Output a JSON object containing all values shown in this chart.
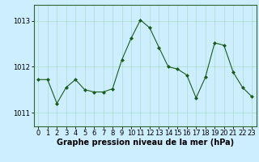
{
  "x": [
    0,
    1,
    2,
    3,
    4,
    5,
    6,
    7,
    8,
    9,
    10,
    11,
    12,
    13,
    14,
    15,
    16,
    17,
    18,
    19,
    20,
    21,
    22,
    23
  ],
  "y": [
    1011.72,
    1011.72,
    1011.2,
    1011.55,
    1011.72,
    1011.5,
    1011.45,
    1011.45,
    1011.52,
    1012.15,
    1012.62,
    1013.02,
    1012.85,
    1012.42,
    1012.0,
    1011.95,
    1011.82,
    1011.32,
    1011.77,
    1012.52,
    1012.47,
    1011.88,
    1011.55,
    1011.35
  ],
  "line_color": "#1a5c1a",
  "marker": "D",
  "marker_size": 2,
  "bg_color": "#cceeff",
  "grid_color": "#aaddcc",
  "ylabel_ticks": [
    1011,
    1012,
    1013
  ],
  "ylim": [
    1010.7,
    1013.35
  ],
  "xlim": [
    -0.5,
    23.5
  ],
  "xlabel": "Graphe pression niveau de la mer (hPa)",
  "xlabel_fontsize": 7,
  "tick_fontsize": 6,
  "border_color": "#336633"
}
